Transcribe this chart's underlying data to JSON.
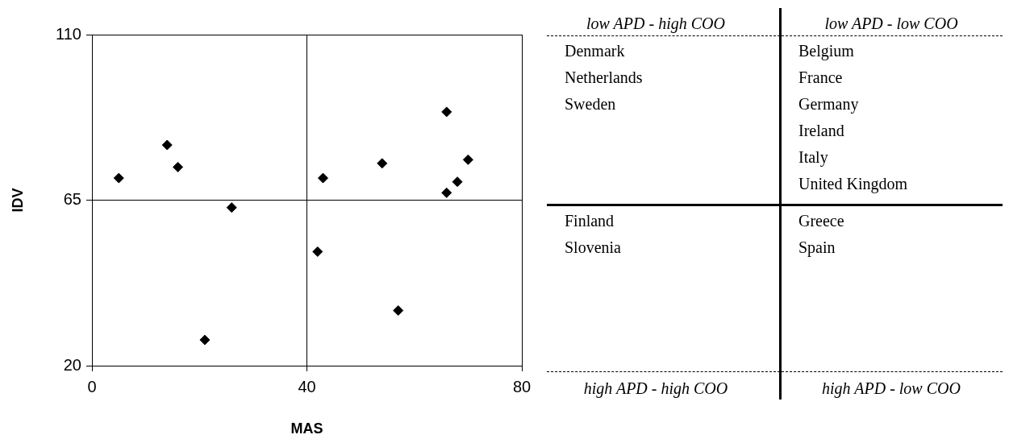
{
  "chart_data": [
    {
      "type": "scatter",
      "xlabel": "MAS",
      "ylabel": "IDV",
      "x": [
        5,
        14,
        16,
        21,
        26,
        42,
        43,
        54,
        57,
        66,
        66,
        68,
        70
      ],
      "values": [
        71,
        80,
        74,
        27,
        63,
        51,
        71,
        75,
        35,
        89,
        67,
        70,
        76
      ],
      "color": "#000000",
      "marker": "diamond",
      "xlim": [
        0,
        80
      ],
      "xticks": [
        0,
        40,
        80
      ],
      "ylim": [
        20,
        110
      ],
      "yticks": [
        20,
        65,
        110
      ],
      "grid": true
    },
    {
      "type": "other",
      "annotations": [
        "low APD - high COO",
        "low APD - low COO",
        "Denmark\nNetherlands\nSweden",
        "Belgium\nFrance\nGermany\nIreland\nItaly\nUnited Kingdom",
        "Finland\nSlovenia",
        "Greece\nSpain",
        "high APD - high COO",
        "high APD - low COO"
      ]
    }
  ]
}
